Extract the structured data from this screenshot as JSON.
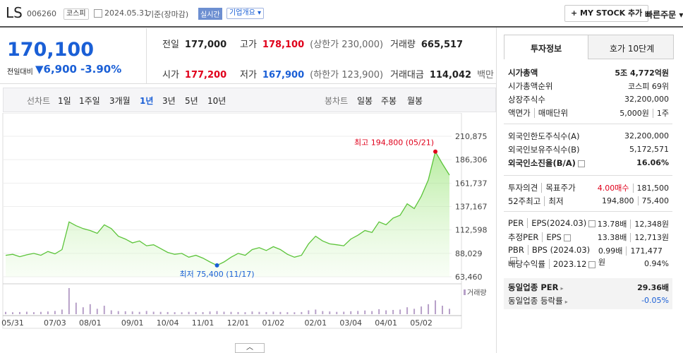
{
  "header": {
    "name": "LS",
    "code": "006260",
    "market": "코스피",
    "date": "2024.05.31",
    "basis": "기준(장마감)",
    "realtime": "실시간",
    "company_overview": "기업개요",
    "my_stock": "MY STOCK 추가",
    "quick_order": "빠른주문"
  },
  "price": {
    "current": "170,100",
    "change_label": "전일대비",
    "change": "6,900",
    "change_rate": "-3.90%"
  },
  "summary": {
    "rows": [
      [
        [
          "전일",
          "177,000"
        ],
        [
          "고가",
          "178,100",
          "(상한가 230,000)"
        ],
        [
          "거래량",
          "665,517"
        ]
      ],
      [
        [
          "시가",
          "177,200"
        ],
        [
          "저가",
          "167,900",
          "(하한가 123,900)"
        ],
        [
          "거래대금",
          "114,042",
          "백만"
        ]
      ]
    ]
  },
  "chart_tabs": {
    "line_label": "선차트",
    "line": [
      "1일",
      "1주일",
      "3개월",
      "1년",
      "3년",
      "5년",
      "10년"
    ],
    "candle_label": "봉차트",
    "candle": [
      "일봉",
      "주봉",
      "월봉"
    ]
  },
  "chart_data": {
    "type": "line",
    "color": "#5cc43a",
    "categories": [
      null,
      "05/31",
      null,
      null,
      null,
      null,
      null,
      "07/03",
      null,
      null,
      null,
      null,
      "08/01",
      null,
      null,
      null,
      null,
      null,
      "09/01",
      null,
      null,
      null,
      null,
      "10/04",
      null,
      null,
      null,
      null,
      "11/01",
      null,
      null,
      null,
      null,
      "12/01",
      null,
      null,
      null,
      null,
      "01/02",
      null,
      null,
      null,
      null,
      null,
      "02/01",
      null,
      null,
      null,
      null,
      "03/04",
      null,
      null,
      null,
      null,
      "04/01",
      null,
      null,
      null,
      null,
      "05/02",
      null,
      null,
      null,
      null
    ],
    "values": [
      86000,
      87000,
      84500,
      86500,
      88000,
      86000,
      90000,
      87500,
      92000,
      121000,
      117000,
      114000,
      112000,
      109000,
      118000,
      114000,
      106000,
      103000,
      99000,
      101000,
      96000,
      97000,
      93000,
      89000,
      87000,
      88000,
      84000,
      86000,
      83000,
      79000,
      75400,
      79000,
      84000,
      88000,
      86000,
      92000,
      94000,
      91000,
      95000,
      92000,
      87000,
      84000,
      86000,
      98000,
      106000,
      101000,
      98000,
      97000,
      96000,
      103000,
      107000,
      112000,
      110000,
      121000,
      118000,
      125000,
      128000,
      140000,
      135000,
      148000,
      165000,
      194800,
      182000,
      170100
    ],
    "ylim": [
      63460,
      210875
    ],
    "yticks": [
      {
        "value": 210875,
        "label": "210,875"
      },
      {
        "value": 186306,
        "label": "186,306"
      },
      {
        "value": 161737,
        "label": "161,737"
      },
      {
        "value": 137167,
        "label": "137,167"
      },
      {
        "value": 112598,
        "label": "112,598"
      },
      {
        "value": 88029,
        "label": "88,029"
      },
      {
        "value": 63460,
        "label": "63,460"
      }
    ],
    "high_label": "최고 194,800 (05/21)",
    "low_label": "최저 75,400 (11/17)",
    "volume_label": "거래량",
    "volume_color": "#b7a0c8",
    "volume": [
      300000,
      250000,
      280000,
      320000,
      260000,
      300000,
      350000,
      420000,
      600000,
      3400000,
      1500000,
      900000,
      1300000,
      700000,
      1100000,
      500000,
      400000,
      380000,
      350000,
      300000,
      420000,
      320000,
      300000,
      280000,
      260000,
      250000,
      300000,
      280000,
      270000,
      350000,
      400000,
      320000,
      300000,
      280000,
      260000,
      350000,
      300000,
      280000,
      330000,
      290000,
      260000,
      250000,
      280000,
      500000,
      600000,
      400000,
      350000,
      300000,
      320000,
      380000,
      420000,
      480000,
      400000,
      650000,
      500000,
      550000,
      600000,
      900000,
      700000,
      1000000,
      1300000,
      1800000,
      1100000,
      700000
    ]
  },
  "invest_panel": {
    "tabs": [
      "투자정보",
      "호가 10단계"
    ],
    "groups": [
      [
        {
          "labels": [
            "시가총액"
          ],
          "values": [
            "5조 4,772억원"
          ]
        },
        {
          "labels": [
            "시가총액순위"
          ],
          "values": [
            "코스피 69위"
          ]
        },
        {
          "labels": [
            "상장주식수"
          ],
          "values": [
            "32,200,000"
          ]
        },
        {
          "labels": [
            "액면가",
            "매매단위"
          ],
          "values": [
            "5,000원",
            "1주"
          ]
        }
      ],
      [
        {
          "labels": [
            "외국인한도주식수(A)"
          ],
          "values": [
            "32,200,000"
          ]
        },
        {
          "labels": [
            "외국인보유주식수(B)"
          ],
          "values": [
            "5,172,571"
          ]
        },
        {
          "labels": [
            "외국인소진율(B/A)"
          ],
          "values": [
            "16.06%"
          ]
        }
      ],
      [
        {
          "labels": [
            "투자의견",
            "목표주가"
          ],
          "values": [
            "4.00매수",
            "181,500"
          ]
        },
        {
          "labels": [
            "52주최고",
            "최저"
          ],
          "values": [
            "194,800",
            "75,400"
          ]
        }
      ],
      [
        {
          "labels": [
            "PER",
            "EPS(2024.03)"
          ],
          "values": [
            "13.78배",
            "12,348원"
          ]
        },
        {
          "labels": [
            "추정PER",
            "EPS"
          ],
          "values": [
            "13.38배",
            "12,713원"
          ]
        },
        {
          "labels": [
            "PBR",
            "BPS (2024.03)"
          ],
          "values": [
            "0.99배",
            "171,477원"
          ]
        },
        {
          "labels": [
            "배당수익률",
            "2023.12"
          ],
          "values": [
            "0.94%"
          ]
        }
      ],
      [
        {
          "labels": [
            "동일업종 PER"
          ],
          "values": [
            "29.36배"
          ]
        },
        {
          "labels": [
            "동일업종 등락률"
          ],
          "values": [
            "-0.05%"
          ]
        }
      ]
    ]
  }
}
